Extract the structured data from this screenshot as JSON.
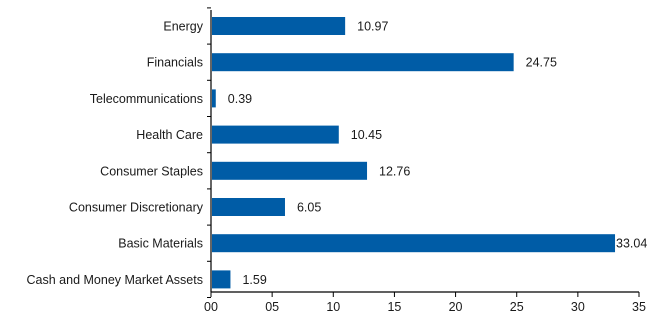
{
  "chart_data": {
    "type": "bar",
    "orientation": "horizontal",
    "categories": [
      "Energy",
      "Financials",
      "Telecommunications",
      "Health Care",
      "Consumer Staples",
      "Consumer Discretionary",
      "Basic Materials",
      "Cash and Money Market Assets"
    ],
    "values": [
      10.97,
      24.75,
      0.39,
      10.45,
      12.76,
      6.05,
      33.04,
      1.59
    ],
    "value_labels": [
      "10.97",
      "24.75",
      "0.39",
      "10.45",
      "12.76",
      "6.05",
      "33.04",
      "1.59"
    ],
    "xlim": [
      0,
      35
    ],
    "xticks": [
      0,
      5,
      10,
      15,
      20,
      25,
      30,
      35
    ],
    "xtick_labels": [
      "00",
      "05",
      "10",
      "15",
      "20",
      "25",
      "30",
      "35"
    ],
    "title": "",
    "xlabel": "",
    "ylabel": "",
    "grid": false,
    "bar_color": "#005ca6"
  }
}
